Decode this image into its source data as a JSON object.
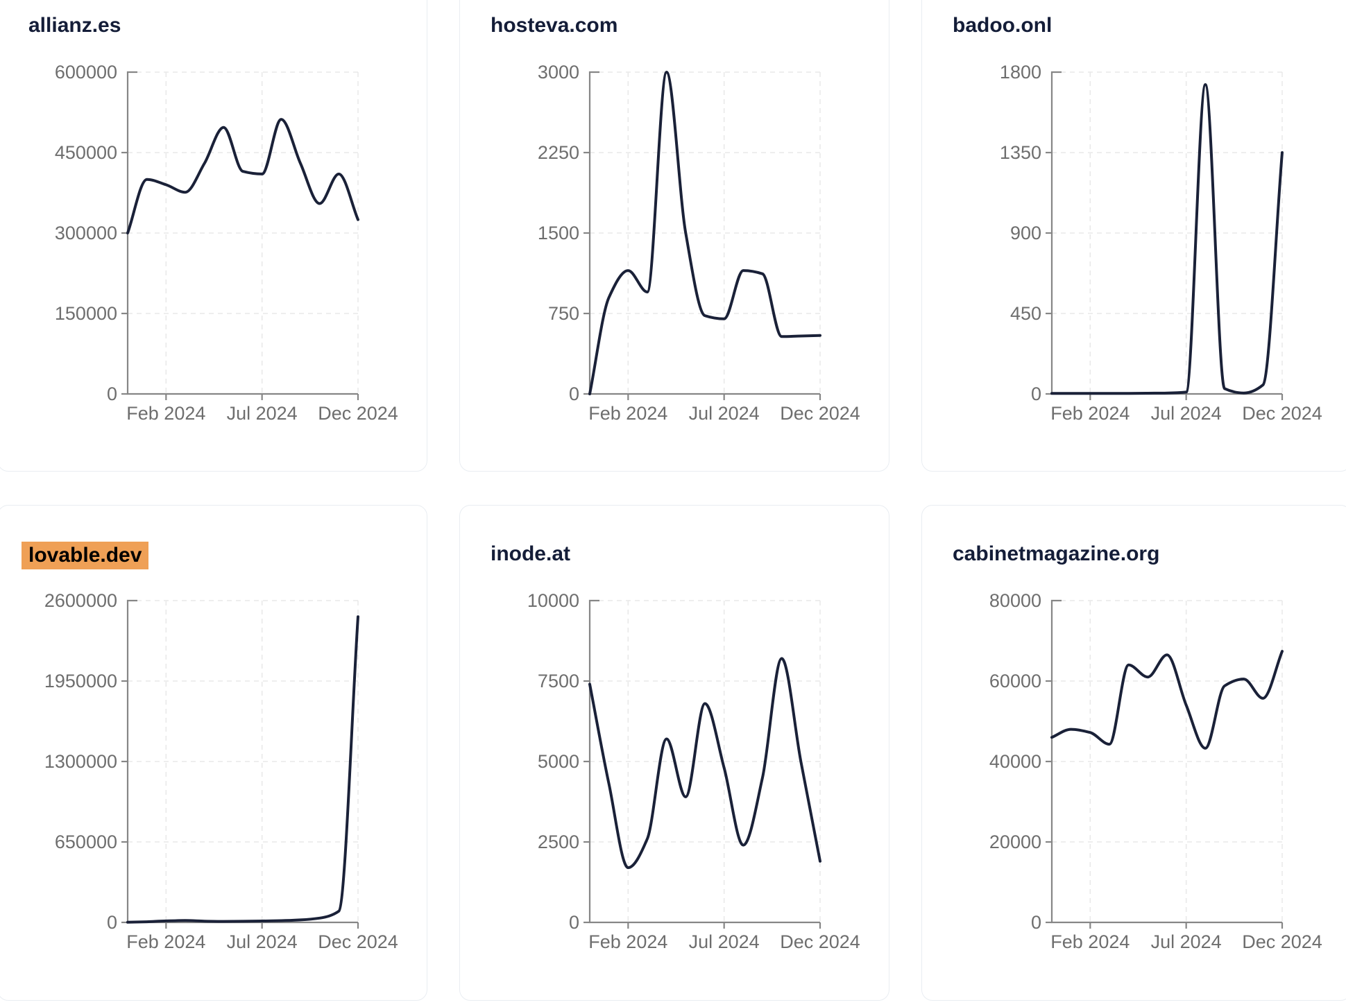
{
  "theme": {
    "background": "#ffffff",
    "card_background": "#ffffff",
    "card_border": "#e9edf2",
    "line_color": "#1a2138",
    "title_color": "#141d38",
    "axis_color": "#868686",
    "tick_label_color": "#6e6e6e",
    "grid_color": "#e9e9e9",
    "highlight_color": "#efa056",
    "highlight_text_color": "#000000"
  },
  "chart_data": [
    {
      "type": "line",
      "title": "allianz.es",
      "title_highlighted": false,
      "x": [
        "Dec 2023",
        "Jan 2024",
        "Feb 2024",
        "Mar 2024",
        "Apr 2024",
        "May 2024",
        "Jun 2024",
        "Jul 2024",
        "Aug 2024",
        "Sep 2024",
        "Oct 2024",
        "Nov 2024",
        "Dec 2024"
      ],
      "values": [
        300000,
        400000,
        390000,
        376000,
        430000,
        497000,
        415000,
        410000,
        512000,
        430000,
        355000,
        410000,
        325000
      ],
      "ylim": [
        0,
        600000
      ],
      "yticks": [
        0,
        150000,
        300000,
        450000,
        600000
      ],
      "xticks": [
        {
          "label": "Feb 2024",
          "index": 2
        },
        {
          "label": "Jul 2024",
          "index": 7
        },
        {
          "label": "Dec 2024",
          "index": 12
        }
      ],
      "grid": "dashed"
    },
    {
      "type": "line",
      "title": "hosteva.com",
      "title_highlighted": false,
      "x": [
        "Dec 2023",
        "Jan 2024",
        "Feb 2024",
        "Mar 2024",
        "Apr 2024",
        "May 2024",
        "Jun 2024",
        "Jul 2024",
        "Aug 2024",
        "Sep 2024",
        "Oct 2024",
        "Nov 2024",
        "Dec 2024"
      ],
      "values": [
        0,
        900,
        1150,
        950,
        3000,
        1500,
        730,
        700,
        1150,
        1120,
        535,
        540,
        545
      ],
      "ylim": [
        0,
        3000
      ],
      "yticks": [
        0,
        750,
        1500,
        2250,
        3000
      ],
      "xticks": [
        {
          "label": "Feb 2024",
          "index": 2
        },
        {
          "label": "Jul 2024",
          "index": 7
        },
        {
          "label": "Dec 2024",
          "index": 12
        }
      ],
      "grid": "dashed"
    },
    {
      "type": "line",
      "title": "badoo.onl",
      "title_highlighted": false,
      "x": [
        "Dec 2023",
        "Jan 2024",
        "Feb 2024",
        "Mar 2024",
        "Apr 2024",
        "May 2024",
        "Jun 2024",
        "Jul 2024",
        "Aug 2024",
        "Sep 2024",
        "Oct 2024",
        "Nov 2024",
        "Dec 2024"
      ],
      "values": [
        3,
        3,
        3,
        3,
        3,
        4,
        5,
        10,
        1730,
        30,
        5,
        50,
        1350
      ],
      "ylim": [
        0,
        1800
      ],
      "yticks": [
        0,
        450,
        900,
        1350,
        1800
      ],
      "xticks": [
        {
          "label": "Feb 2024",
          "index": 2
        },
        {
          "label": "Jul 2024",
          "index": 7
        },
        {
          "label": "Dec 2024",
          "index": 12
        }
      ],
      "grid": "dashed"
    },
    {
      "type": "line",
      "title": "lovable.dev",
      "title_highlighted": true,
      "x": [
        "Dec 2023",
        "Jan 2024",
        "Feb 2024",
        "Mar 2024",
        "Apr 2024",
        "May 2024",
        "Jun 2024",
        "Jul 2024",
        "Aug 2024",
        "Sep 2024",
        "Oct 2024",
        "Nov 2024",
        "Dec 2024"
      ],
      "values": [
        1000,
        5000,
        12000,
        15000,
        10000,
        8000,
        9000,
        11000,
        14000,
        20000,
        35000,
        90000,
        2470000
      ],
      "ylim": [
        0,
        2600000
      ],
      "yticks": [
        0,
        650000,
        1300000,
        1950000,
        2600000
      ],
      "xticks": [
        {
          "label": "Feb 2024",
          "index": 2
        },
        {
          "label": "Jul 2024",
          "index": 7
        },
        {
          "label": "Dec 2024",
          "index": 12
        }
      ],
      "grid": "dashed"
    },
    {
      "type": "line",
      "title": "inode.at",
      "title_highlighted": false,
      "x": [
        "Dec 2023",
        "Jan 2024",
        "Feb 2024",
        "Mar 2024",
        "Apr 2024",
        "May 2024",
        "Jun 2024",
        "Jul 2024",
        "Aug 2024",
        "Sep 2024",
        "Oct 2024",
        "Nov 2024",
        "Dec 2024"
      ],
      "values": [
        7400,
        4300,
        1700,
        2600,
        5700,
        3900,
        6800,
        4800,
        2400,
        4500,
        8200,
        5000,
        1900
      ],
      "ylim": [
        0,
        10000
      ],
      "yticks": [
        0,
        2500,
        5000,
        7500,
        10000
      ],
      "xticks": [
        {
          "label": "Feb 2024",
          "index": 2
        },
        {
          "label": "Jul 2024",
          "index": 7
        },
        {
          "label": "Dec 2024",
          "index": 12
        }
      ],
      "grid": "dashed"
    },
    {
      "type": "line",
      "title": "cabinetmagazine.org",
      "title_highlighted": false,
      "x": [
        "Dec 2023",
        "Jan 2024",
        "Feb 2024",
        "Mar 2024",
        "Apr 2024",
        "May 2024",
        "Jun 2024",
        "Jul 2024",
        "Aug 2024",
        "Sep 2024",
        "Oct 2024",
        "Nov 2024",
        "Dec 2024"
      ],
      "values": [
        46000,
        48000,
        47200,
        44300,
        64000,
        61000,
        66500,
        54000,
        43300,
        58800,
        60500,
        55700,
        67400
      ],
      "ylim": [
        0,
        80000
      ],
      "yticks": [
        0,
        20000,
        40000,
        60000,
        80000
      ],
      "xticks": [
        {
          "label": "Feb 2024",
          "index": 2
        },
        {
          "label": "Jul 2024",
          "index": 7
        },
        {
          "label": "Dec 2024",
          "index": 12
        }
      ],
      "grid": "dashed"
    }
  ]
}
